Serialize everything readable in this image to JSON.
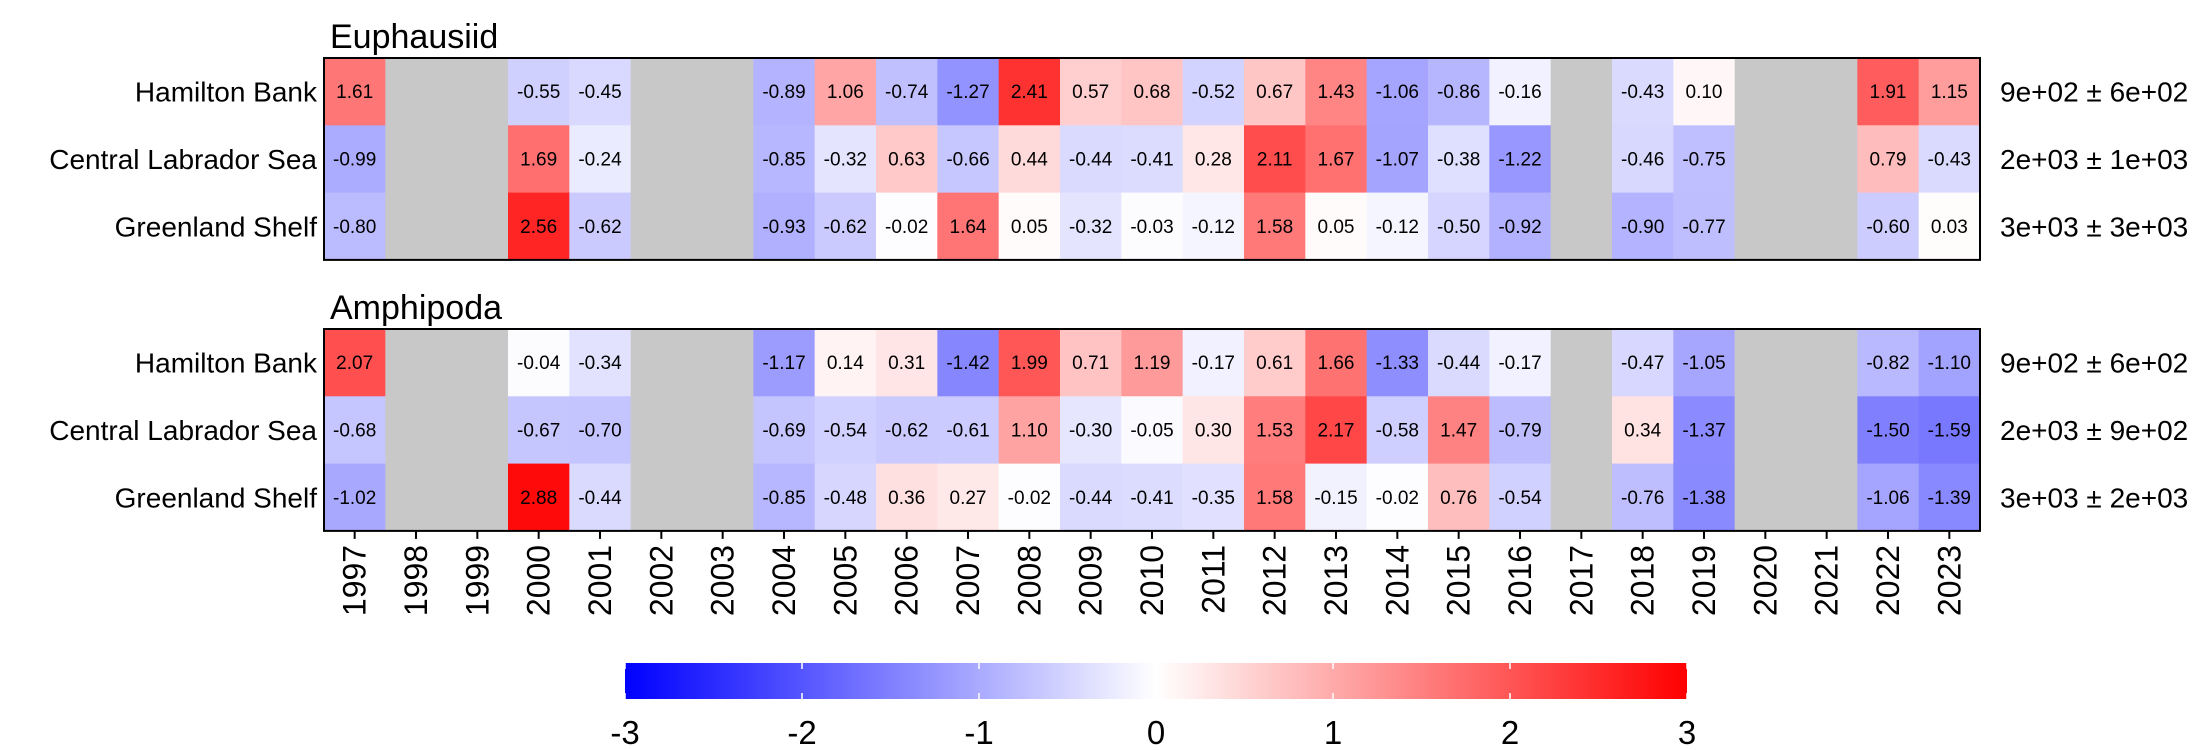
{
  "chart_data": {
    "type": "heatmap",
    "years": [
      "1997",
      "1998",
      "1999",
      "2000",
      "2001",
      "2002",
      "2003",
      "2004",
      "2005",
      "2006",
      "2007",
      "2008",
      "2009",
      "2010",
      "2011",
      "2012",
      "2013",
      "2014",
      "2015",
      "2016",
      "2017",
      "2018",
      "2019",
      "2020",
      "2021",
      "2022",
      "2023"
    ],
    "regions": [
      "Hamilton Bank",
      "Central Labrador Sea",
      "Greenland Shelf"
    ],
    "panels": [
      {
        "title": "Euphausiid",
        "rows": [
          {
            "region": "Hamilton Bank",
            "summary": "9e+02 ± 6e+02",
            "values": [
              1.61,
              null,
              null,
              -0.55,
              -0.45,
              null,
              null,
              -0.89,
              1.06,
              -0.74,
              -1.27,
              2.41,
              0.57,
              0.68,
              -0.52,
              0.67,
              1.43,
              -1.06,
              -0.86,
              -0.16,
              null,
              -0.43,
              0.1,
              null,
              null,
              1.91,
              1.15
            ]
          },
          {
            "region": "Central Labrador Sea",
            "summary": "2e+03 ± 1e+03",
            "values": [
              -0.99,
              null,
              null,
              1.69,
              -0.24,
              null,
              null,
              -0.85,
              -0.32,
              0.63,
              -0.66,
              0.44,
              -0.44,
              -0.41,
              0.28,
              2.11,
              1.67,
              -1.07,
              -0.38,
              -1.22,
              null,
              -0.46,
              -0.75,
              null,
              null,
              0.79,
              -0.43
            ]
          },
          {
            "region": "Greenland Shelf",
            "summary": "3e+03 ± 3e+03",
            "values": [
              -0.8,
              null,
              null,
              2.56,
              -0.62,
              null,
              null,
              -0.93,
              -0.62,
              -0.02,
              1.64,
              0.05,
              -0.32,
              -0.03,
              -0.12,
              1.58,
              0.05,
              -0.12,
              -0.5,
              -0.92,
              null,
              -0.9,
              -0.77,
              null,
              null,
              -0.6,
              0.03
            ]
          }
        ]
      },
      {
        "title": "Amphipoda",
        "rows": [
          {
            "region": "Hamilton Bank",
            "summary": "9e+02 ± 6e+02",
            "values": [
              2.07,
              null,
              null,
              -0.04,
              -0.34,
              null,
              null,
              -1.17,
              0.14,
              0.31,
              -1.42,
              1.99,
              0.71,
              1.19,
              -0.17,
              0.61,
              1.66,
              -1.33,
              -0.44,
              -0.17,
              null,
              -0.47,
              -1.05,
              null,
              null,
              -0.82,
              -1.1
            ]
          },
          {
            "region": "Central Labrador Sea",
            "summary": "2e+03 ± 9e+02",
            "values": [
              -0.68,
              null,
              null,
              -0.67,
              -0.7,
              null,
              null,
              -0.69,
              -0.54,
              -0.62,
              -0.61,
              1.1,
              -0.3,
              -0.05,
              0.3,
              1.53,
              2.17,
              -0.58,
              1.47,
              -0.79,
              null,
              0.34,
              -1.37,
              null,
              null,
              -1.5,
              -1.59
            ]
          },
          {
            "region": "Greenland Shelf",
            "summary": "3e+03 ± 2e+03",
            "values": [
              -1.02,
              null,
              null,
              2.88,
              -0.44,
              null,
              null,
              -0.85,
              -0.48,
              0.36,
              0.27,
              -0.02,
              -0.44,
              -0.41,
              -0.35,
              1.58,
              -0.15,
              -0.02,
              0.76,
              -0.54,
              null,
              -0.76,
              -1.38,
              null,
              null,
              -1.06,
              -1.39
            ]
          }
        ]
      }
    ],
    "color_scale": {
      "min": -3,
      "max": 3,
      "low": "#0000ff",
      "mid": "#ffffff",
      "high": "#ff0000",
      "missing": "#c8c8c8"
    },
    "legend": {
      "ticks": [
        "-3",
        "-2",
        "-1",
        "0",
        "1",
        "2",
        "3"
      ],
      "placement": "bottom-center"
    }
  }
}
